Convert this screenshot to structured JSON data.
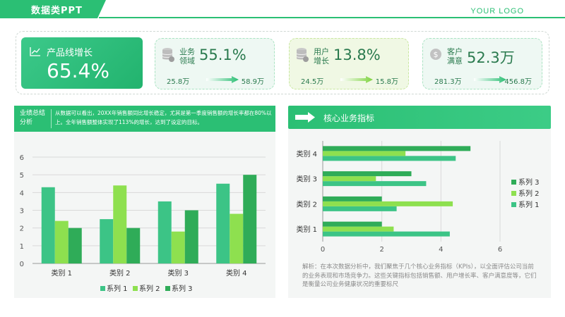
{
  "header": {
    "title": "数据类PPT",
    "logo": "YOUR LOGO"
  },
  "kpis": {
    "main": {
      "label": "产品线增长",
      "value": "65.4%",
      "icon": "line-chart-icon"
    },
    "cards": [
      {
        "label": "业务\n领域",
        "value": "55.1%",
        "from": "25.8万",
        "to": "58.9万",
        "icon": "database-icon",
        "bg": "#eef8f3"
      },
      {
        "label": "用户\n增长",
        "value": "13.8%",
        "from": "24.5万",
        "to": "15.8万",
        "icon": "database-icon",
        "bg": "#f0f8e4"
      },
      {
        "label": "客户\n满意",
        "value": "52.3万",
        "from": "281.3万",
        "to": "456.8万",
        "icon": "dollar-icon",
        "bg": "#eef8f3"
      }
    ]
  },
  "left_panel": {
    "tag": "业绩总结分析",
    "text": "从数据可以看出，20XX年销售额同比增长稳定，尤其是第一季度销售额的增长率都在80%以上。全年销售额整体实现了113%的增长，达到了设定的目标。"
  },
  "right_panel": {
    "title": "核心业务指标",
    "note": "解析：在本次数据分析中，我们聚焦于几个核心业务指标（KPIs），以全面评估公司当前的业务表现和市场竞争力。这些关键指标包括销售额、用户增长率、客户满意度等，它们是衡量公司业务健康状况的重要标尺"
  },
  "colors": {
    "s1": "#3cc486",
    "s2": "#8ee04f",
    "s3": "#2fac58"
  },
  "chart_data": [
    {
      "type": "bar",
      "orientation": "vertical",
      "categories": [
        "类别 1",
        "类别 2",
        "类别 3",
        "类别 4"
      ],
      "series": [
        {
          "name": "系列 1",
          "values": [
            4.3,
            2.5,
            3.5,
            4.5
          ]
        },
        {
          "name": "系列 2",
          "values": [
            2.4,
            4.4,
            1.8,
            2.8
          ]
        },
        {
          "name": "系列 3",
          "values": [
            2,
            2,
            3,
            5
          ]
        }
      ],
      "yticks": [
        "0",
        "1",
        "2",
        "3",
        "4",
        "5",
        "6"
      ],
      "ylim": [
        0,
        6
      ],
      "grid": true,
      "legend": "bottom"
    },
    {
      "type": "bar",
      "orientation": "horizontal",
      "categories": [
        "类别 1",
        "类别 2",
        "类别 3",
        "类别 4"
      ],
      "series": [
        {
          "name": "系列 1",
          "values": [
            4.3,
            2.5,
            3.5,
            4.5
          ]
        },
        {
          "name": "系列 2",
          "values": [
            2.4,
            4.4,
            1.8,
            2.8
          ]
        },
        {
          "name": "系列 3",
          "values": [
            2,
            2,
            3,
            5
          ]
        }
      ],
      "xticks": [
        "0",
        "2",
        "4",
        "6"
      ],
      "xlim": [
        0,
        6
      ],
      "grid": true,
      "legend": "right"
    }
  ]
}
